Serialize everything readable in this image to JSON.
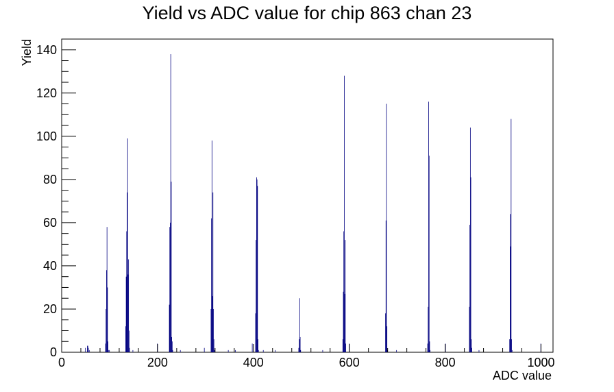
{
  "chart_data": {
    "type": "histogram",
    "title": "Yield vs ADC value for chip 863 chan 23",
    "xlabel": "ADC value",
    "ylabel": "Yield",
    "xlim": [
      0,
      1025
    ],
    "ylim": [
      0,
      145
    ],
    "x_ticks": [
      0,
      200,
      400,
      600,
      800,
      1000
    ],
    "y_ticks": [
      0,
      20,
      40,
      60,
      80,
      100,
      120,
      140
    ],
    "grid": false,
    "legend": "none",
    "line_color": "#000080",
    "bins": [
      [
        49,
        2
      ],
      [
        53,
        3
      ],
      [
        54,
        3
      ],
      [
        55,
        2
      ],
      [
        57,
        1
      ],
      [
        91,
        4
      ],
      [
        92,
        20
      ],
      [
        93,
        38
      ],
      [
        94,
        58
      ],
      [
        95,
        30
      ],
      [
        96,
        5
      ],
      [
        97,
        1
      ],
      [
        99,
        1
      ],
      [
        133,
        12
      ],
      [
        134,
        35
      ],
      [
        135,
        56
      ],
      [
        136,
        74
      ],
      [
        137,
        99
      ],
      [
        138,
        36
      ],
      [
        139,
        43
      ],
      [
        140,
        10
      ],
      [
        141,
        2
      ],
      [
        148,
        1
      ],
      [
        199,
        4
      ],
      [
        224,
        22
      ],
      [
        225,
        58
      ],
      [
        226,
        60
      ],
      [
        227,
        138
      ],
      [
        228,
        79
      ],
      [
        229,
        7
      ],
      [
        230,
        5
      ],
      [
        231,
        1
      ],
      [
        247,
        1
      ],
      [
        297,
        2
      ],
      [
        311,
        20
      ],
      [
        312,
        62
      ],
      [
        313,
        98
      ],
      [
        314,
        26
      ],
      [
        315,
        74
      ],
      [
        316,
        20
      ],
      [
        317,
        6
      ],
      [
        318,
        1
      ],
      [
        347,
        1
      ],
      [
        362,
        1
      ],
      [
        397,
        4
      ],
      [
        404,
        18
      ],
      [
        405,
        52
      ],
      [
        406,
        81
      ],
      [
        407,
        80
      ],
      [
        408,
        77
      ],
      [
        409,
        6
      ],
      [
        410,
        1
      ],
      [
        420,
        1
      ],
      [
        445,
        1
      ],
      [
        494,
        2
      ],
      [
        495,
        6
      ],
      [
        496,
        25
      ],
      [
        497,
        7
      ],
      [
        498,
        1
      ],
      [
        544,
        1
      ],
      [
        586,
        6
      ],
      [
        587,
        28
      ],
      [
        588,
        56
      ],
      [
        589,
        128
      ],
      [
        590,
        27
      ],
      [
        591,
        52
      ],
      [
        592,
        4
      ],
      [
        599,
        4
      ],
      [
        675,
        18
      ],
      [
        676,
        61
      ],
      [
        677,
        115
      ],
      [
        678,
        12
      ],
      [
        679,
        1
      ],
      [
        698,
        1
      ],
      [
        763,
        4
      ],
      [
        764,
        21
      ],
      [
        765,
        116
      ],
      [
        766,
        91
      ],
      [
        767,
        5
      ],
      [
        768,
        1
      ],
      [
        800,
        4
      ],
      [
        850,
        21
      ],
      [
        851,
        59
      ],
      [
        852,
        104
      ],
      [
        853,
        81
      ],
      [
        854,
        6
      ],
      [
        855,
        2
      ],
      [
        870,
        1
      ],
      [
        934,
        6
      ],
      [
        935,
        64
      ],
      [
        936,
        49
      ],
      [
        937,
        108
      ],
      [
        938,
        6
      ],
      [
        939,
        1
      ],
      [
        999,
        4
      ]
    ]
  }
}
